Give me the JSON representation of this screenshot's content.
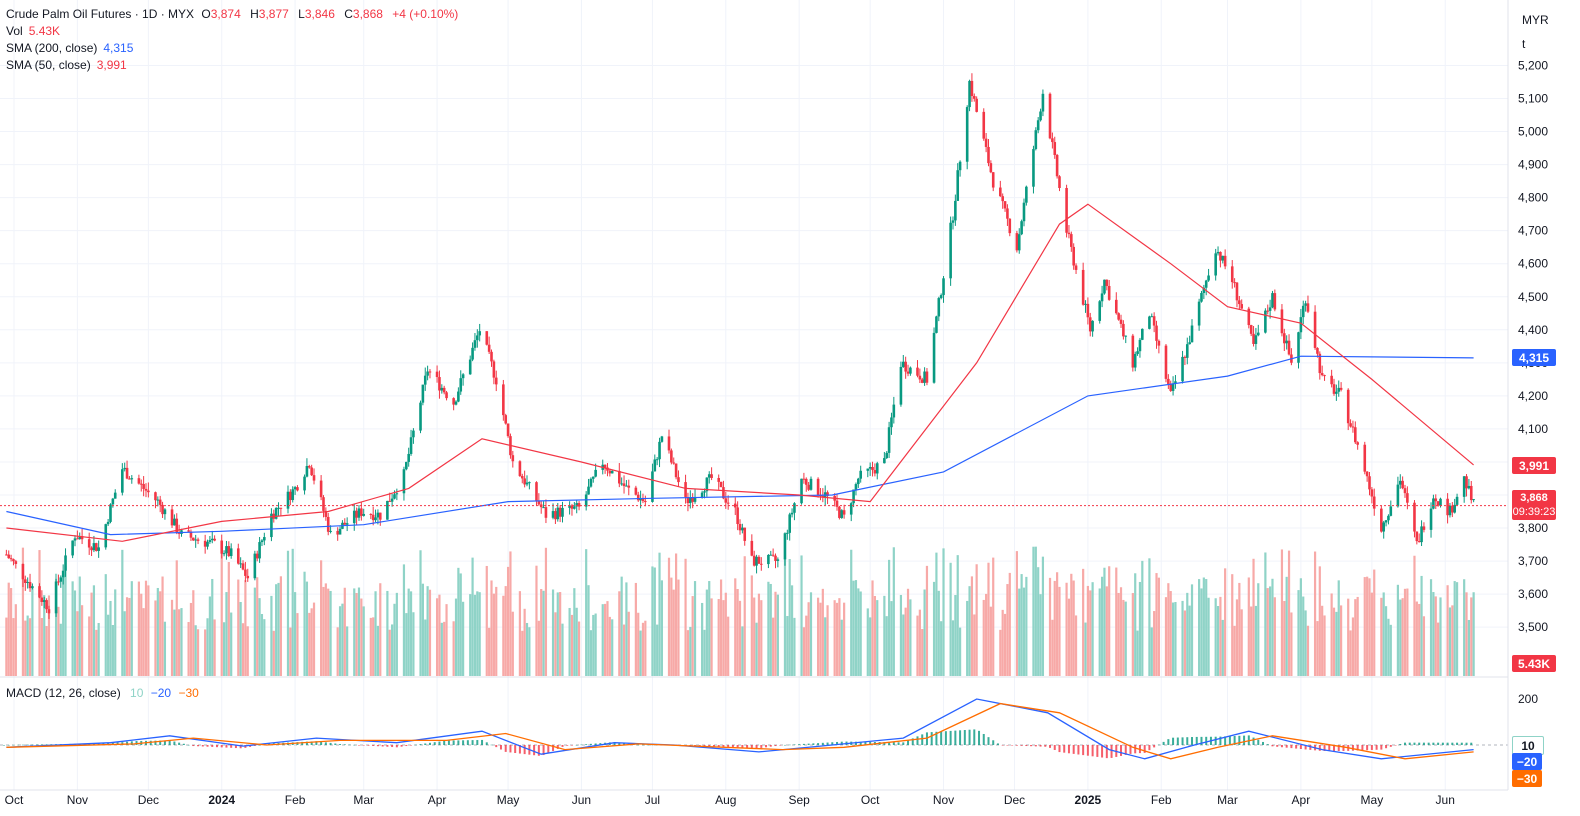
{
  "header": {
    "symbol_line": "Crude Palm Oil Futures · 1D · MYX",
    "o_label": "O",
    "o_value": "3,874",
    "h_label": "H",
    "h_value": "3,877",
    "l_label": "L",
    "l_value": "3,846",
    "c_label": "C",
    "c_value": "3,868",
    "change": "+4 (+0.10%)"
  },
  "legend": {
    "vol_label": "Vol",
    "vol_value": "5.43K",
    "sma200_label": "SMA (200, close)",
    "sma200_value": "4,315",
    "sma50_label": "SMA (50, close)",
    "sma50_value": "3,991"
  },
  "currency": {
    "code": "MYR",
    "unit": "t"
  },
  "macd_legend": {
    "label": "MACD (12, 26, close)",
    "v1": "10",
    "v2": "−20",
    "v3": "−30"
  },
  "badges": {
    "sma200": "4,315",
    "sma50": "3,991",
    "last_price": "3,868",
    "countdown": "09:39:23",
    "volume": "5.43K",
    "macd_hist": "10",
    "macd_line": "−20",
    "macd_signal": "−30"
  },
  "colors": {
    "up": "#089981",
    "down": "#f23645",
    "sma200": "#2962ff",
    "sma50": "#f23645",
    "macd": "#2962ff",
    "signal": "#ff6d00",
    "vol_up": "#8fd3c7",
    "vol_down": "#f7a9a7"
  },
  "chart_data": {
    "type": "candlestick",
    "price_axis": {
      "ticks": [
        3500,
        3600,
        3700,
        3800,
        3900,
        4000,
        4100,
        4200,
        4300,
        4400,
        4500,
        4600,
        4700,
        4800,
        4900,
        5000,
        5100,
        5200
      ],
      "tick_labels": [
        "3,500",
        "3,600",
        "3,700",
        "3,800",
        "3,900",
        "4,000",
        "4,100",
        "4,200",
        "4,300",
        "4,400",
        "4,500",
        "4,600",
        "4,700",
        "4,800",
        "4,900",
        "5,000",
        "5,100",
        "5,200"
      ]
    },
    "macd_axis": {
      "ticks": [
        200
      ],
      "tick_labels": [
        "200"
      ]
    },
    "time_axis": {
      "labels": [
        "Oct",
        "Nov",
        "Dec",
        "2024",
        "Feb",
        "Mar",
        "Apr",
        "May",
        "Jun",
        "Jul",
        "Aug",
        "Sep",
        "Oct",
        "Nov",
        "Dec",
        "2025",
        "Feb",
        "Mar",
        "Apr",
        "May",
        "Jun"
      ],
      "bold": [
        "2024",
        "2025"
      ]
    },
    "price_path": [
      [
        "2023-10-02",
        3720
      ],
      [
        "2023-10-20",
        3560
      ],
      [
        "2023-10-31",
        3780
      ],
      [
        "2023-11-10",
        3740
      ],
      [
        "2023-11-20",
        3980
      ],
      [
        "2023-12-05",
        3880
      ],
      [
        "2023-12-15",
        3780
      ],
      [
        "2023-12-29",
        3750
      ],
      [
        "2024-01-05",
        3720
      ],
      [
        "2024-01-12",
        3650
      ],
      [
        "2024-01-22",
        3840
      ],
      [
        "2024-02-01",
        3920
      ],
      [
        "2024-02-07",
        4000
      ],
      [
        "2024-02-16",
        3780
      ],
      [
        "2024-02-29",
        3850
      ],
      [
        "2024-03-08",
        3840
      ],
      [
        "2024-03-18",
        3960
      ],
      [
        "2024-03-28",
        4280
      ],
      [
        "2024-04-08",
        4180
      ],
      [
        "2024-04-19",
        4400
      ],
      [
        "2024-04-26",
        4250
      ],
      [
        "2024-05-03",
        4000
      ],
      [
        "2024-05-17",
        3840
      ],
      [
        "2024-05-31",
        3860
      ],
      [
        "2024-06-10",
        4000
      ],
      [
        "2024-06-20",
        3920
      ],
      [
        "2024-06-28",
        3880
      ],
      [
        "2024-07-05",
        4080
      ],
      [
        "2024-07-15",
        3880
      ],
      [
        "2024-07-26",
        3950
      ],
      [
        "2024-08-05",
        3850
      ],
      [
        "2024-08-12",
        3700
      ],
      [
        "2024-08-23",
        3700
      ],
      [
        "2024-09-02",
        3950
      ],
      [
        "2024-09-12",
        3900
      ],
      [
        "2024-09-20",
        3830
      ],
      [
        "2024-09-26",
        3950
      ],
      [
        "2024-10-07",
        4000
      ],
      [
        "2024-10-14",
        4300
      ],
      [
        "2024-10-25",
        4250
      ],
      [
        "2024-11-05",
        4750
      ],
      [
        "2024-11-12",
        5150
      ],
      [
        "2024-11-22",
        4850
      ],
      [
        "2024-12-02",
        4650
      ],
      [
        "2024-12-13",
        5120
      ],
      [
        "2024-12-23",
        4700
      ],
      [
        "2025-01-02",
        4400
      ],
      [
        "2025-01-08",
        4550
      ],
      [
        "2025-01-20",
        4300
      ],
      [
        "2025-01-27",
        4450
      ],
      [
        "2025-02-05",
        4200
      ],
      [
        "2025-02-12",
        4350
      ],
      [
        "2025-02-24",
        4650
      ],
      [
        "2025-03-03",
        4550
      ],
      [
        "2025-03-12",
        4350
      ],
      [
        "2025-03-20",
        4500
      ],
      [
        "2025-03-28",
        4300
      ],
      [
        "2025-04-03",
        4500
      ],
      [
        "2025-04-10",
        4250
      ],
      [
        "2025-04-18",
        4200
      ],
      [
        "2025-04-25",
        4050
      ],
      [
        "2025-05-05",
        3800
      ],
      [
        "2025-05-13",
        3950
      ],
      [
        "2025-05-20",
        3750
      ],
      [
        "2025-05-27",
        3900
      ],
      [
        "2025-06-03",
        3850
      ],
      [
        "2025-06-09",
        3950
      ],
      [
        "2025-06-13",
        3868
      ]
    ],
    "sma200_path": [
      [
        "2023-10-02",
        3850
      ],
      [
        "2023-11-15",
        3780
      ],
      [
        "2024-01-01",
        3790
      ],
      [
        "2024-03-01",
        3810
      ],
      [
        "2024-05-01",
        3880
      ],
      [
        "2024-07-01",
        3890
      ],
      [
        "2024-09-15",
        3900
      ],
      [
        "2024-11-01",
        3970
      ],
      [
        "2025-01-01",
        4200
      ],
      [
        "2025-03-01",
        4260
      ],
      [
        "2025-04-01",
        4320
      ],
      [
        "2025-06-13",
        4315
      ]
    ],
    "sma50_path": [
      [
        "2023-10-02",
        3800
      ],
      [
        "2023-11-20",
        3760
      ],
      [
        "2024-01-01",
        3820
      ],
      [
        "2024-02-15",
        3850
      ],
      [
        "2024-03-20",
        3920
      ],
      [
        "2024-04-20",
        4070
      ],
      [
        "2024-06-01",
        4000
      ],
      [
        "2024-07-15",
        3920
      ],
      [
        "2024-09-01",
        3900
      ],
      [
        "2024-10-01",
        3880
      ],
      [
        "2024-11-15",
        4300
      ],
      [
        "2024-12-20",
        4720
      ],
      [
        "2025-01-01",
        4780
      ],
      [
        "2025-02-05",
        4600
      ],
      [
        "2025-03-01",
        4470
      ],
      [
        "2025-04-01",
        4420
      ],
      [
        "2025-05-01",
        4250
      ],
      [
        "2025-06-13",
        3991
      ]
    ],
    "macd_path": [
      [
        "2023-10-02",
        -10
      ],
      [
        "2023-11-15",
        10
      ],
      [
        "2023-12-10",
        40
      ],
      [
        "2024-01-10",
        -5
      ],
      [
        "2024-02-10",
        30
      ],
      [
        "2024-03-15",
        10
      ],
      [
        "2024-04-20",
        60
      ],
      [
        "2024-05-15",
        -40
      ],
      [
        "2024-06-15",
        10
      ],
      [
        "2024-07-10",
        0
      ],
      [
        "2024-08-15",
        -30
      ],
      [
        "2024-09-10",
        -5
      ],
      [
        "2024-10-15",
        30
      ],
      [
        "2024-11-15",
        200
      ],
      [
        "2024-12-15",
        140
      ],
      [
        "2025-01-10",
        -20
      ],
      [
        "2025-01-25",
        -60
      ],
      [
        "2025-02-15",
        0
      ],
      [
        "2025-03-10",
        60
      ],
      [
        "2025-04-10",
        -20
      ],
      [
        "2025-05-05",
        -60
      ],
      [
        "2025-06-13",
        -20
      ]
    ],
    "signal_path": [
      [
        "2023-10-02",
        -10
      ],
      [
        "2023-11-25",
        5
      ],
      [
        "2023-12-20",
        30
      ],
      [
        "2024-01-20",
        0
      ],
      [
        "2024-02-20",
        20
      ],
      [
        "2024-04-05",
        20
      ],
      [
        "2024-04-30",
        50
      ],
      [
        "2024-05-25",
        -20
      ],
      [
        "2024-06-25",
        5
      ],
      [
        "2024-08-25",
        -20
      ],
      [
        "2024-09-20",
        -10
      ],
      [
        "2024-10-25",
        30
      ],
      [
        "2024-11-25",
        180
      ],
      [
        "2024-12-20",
        140
      ],
      [
        "2025-01-20",
        -10
      ],
      [
        "2025-02-05",
        -60
      ],
      [
        "2025-02-25",
        -10
      ],
      [
        "2025-03-20",
        40
      ],
      [
        "2025-04-20",
        -10
      ],
      [
        "2025-05-15",
        -60
      ],
      [
        "2025-06-13",
        -30
      ]
    ],
    "last_price": 3868,
    "sma200_last": 4315,
    "sma50_last": 3991,
    "volume_last": "5.43K"
  }
}
